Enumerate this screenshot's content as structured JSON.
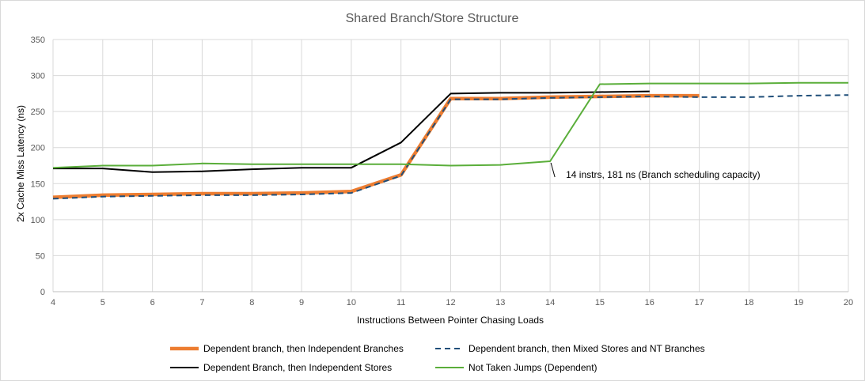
{
  "chart_data": {
    "type": "line",
    "title": "Shared Branch/Store Structure",
    "xlabel": "Instructions Between Pointer Chasing Loads",
    "ylabel": "2x Cache Miss Latency (ns)",
    "xlim": [
      4,
      20
    ],
    "ylim": [
      0,
      350
    ],
    "x_ticks": [
      "4",
      "5",
      "6",
      "7",
      "8",
      "9",
      "10",
      "11",
      "12",
      "13",
      "14",
      "15",
      "16",
      "17",
      "18",
      "19",
      "20"
    ],
    "y_ticks": [
      "0",
      "50",
      "100",
      "150",
      "200",
      "250",
      "300",
      "350"
    ],
    "grid": true,
    "legend_position": "bottom",
    "series": [
      {
        "name": "Dependent branch, then Independent Branches",
        "color": "#ed7d31",
        "style": "solid-thick",
        "x": [
          4,
          5,
          6,
          7,
          8,
          9,
          10,
          11,
          12,
          13,
          14,
          15,
          16,
          17
        ],
        "y": [
          131,
          134,
          135,
          136,
          136,
          137,
          139,
          162,
          268,
          268,
          270,
          271,
          272,
          272
        ]
      },
      {
        "name": "Dependent branch, then Mixed Stores and NT Branches",
        "color": "#1f4e79",
        "style": "dashed",
        "x": [
          4,
          5,
          6,
          7,
          8,
          9,
          10,
          11,
          12,
          13,
          14,
          15,
          16,
          17,
          18,
          19,
          20
        ],
        "y": [
          129,
          132,
          133,
          134,
          134,
          135,
          137,
          161,
          267,
          267,
          269,
          270,
          271,
          270,
          270,
          272,
          273
        ]
      },
      {
        "name": "Dependent Branch, then Independent Stores",
        "color": "#000000",
        "style": "solid",
        "x": [
          4,
          5,
          6,
          7,
          8,
          9,
          10,
          11,
          12,
          13,
          14,
          15,
          16
        ],
        "y": [
          171,
          171,
          166,
          167,
          170,
          172,
          172,
          207,
          275,
          276,
          276,
          277,
          278
        ]
      },
      {
        "name": "Not Taken Jumps (Dependent)",
        "color": "#5aae3a",
        "style": "solid",
        "x": [
          4,
          5,
          6,
          7,
          8,
          9,
          10,
          11,
          12,
          13,
          14,
          15,
          16,
          17,
          18,
          19,
          20
        ],
        "y": [
          172,
          175,
          175,
          178,
          177,
          177,
          177,
          177,
          175,
          176,
          181,
          288,
          289,
          289,
          289,
          290,
          290
        ]
      }
    ],
    "annotations": [
      {
        "text": "14 instrs, 181 ns (Branch scheduling capacity)",
        "x": 14,
        "y": 181
      }
    ]
  }
}
